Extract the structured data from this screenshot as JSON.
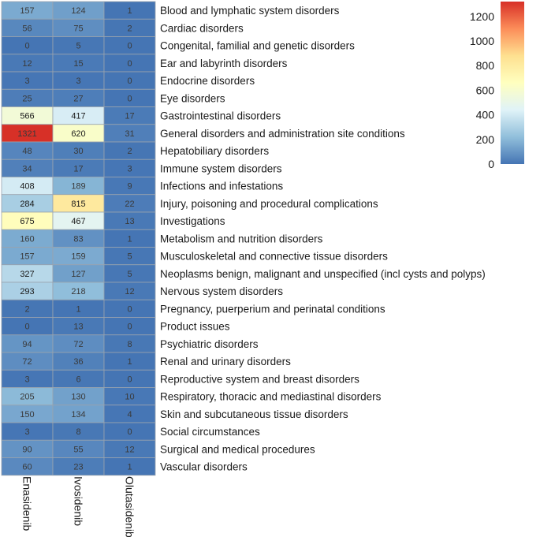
{
  "chart_data": {
    "type": "heatmap",
    "title": "",
    "columns": [
      "Enasidenib",
      "Ivosidenib",
      "Olutasidenib"
    ],
    "rows": [
      "Blood and lymphatic system disorders",
      "Cardiac disorders",
      "Congenital, familial and genetic disorders",
      "Ear and labyrinth disorders",
      "Endocrine disorders",
      "Eye disorders",
      "Gastrointestinal disorders",
      "General disorders and administration site conditions",
      "Hepatobiliary disorders",
      "Immune system disorders",
      "Infections and infestations",
      "Injury, poisoning and procedural complications",
      "Investigations",
      "Metabolism and nutrition disorders",
      "Musculoskeletal and connective tissue disorders",
      "Neoplasms benign, malignant and unspecified (incl cysts and polyps)",
      "Nervous system disorders",
      "Pregnancy, puerperium and perinatal conditions",
      "Product issues",
      "Psychiatric disorders",
      "Renal and urinary disorders",
      "Reproductive system and breast disorders",
      "Respiratory, thoracic and mediastinal disorders",
      "Skin and subcutaneous tissue disorders",
      "Social circumstances",
      "Surgical and medical procedures",
      "Vascular disorders"
    ],
    "values": [
      [
        157,
        124,
        1
      ],
      [
        56,
        75,
        2
      ],
      [
        0,
        5,
        0
      ],
      [
        12,
        15,
        0
      ],
      [
        3,
        3,
        0
      ],
      [
        25,
        27,
        0
      ],
      [
        566,
        417,
        17
      ],
      [
        1321,
        620,
        31
      ],
      [
        48,
        30,
        2
      ],
      [
        34,
        17,
        3
      ],
      [
        408,
        189,
        9
      ],
      [
        284,
        815,
        22
      ],
      [
        675,
        467,
        13
      ],
      [
        160,
        83,
        1
      ],
      [
        157,
        159,
        5
      ],
      [
        327,
        127,
        5
      ],
      [
        293,
        218,
        12
      ],
      [
        2,
        1,
        0
      ],
      [
        0,
        13,
        0
      ],
      [
        94,
        72,
        8
      ],
      [
        72,
        36,
        1
      ],
      [
        3,
        6,
        0
      ],
      [
        205,
        130,
        10
      ],
      [
        150,
        134,
        4
      ],
      [
        3,
        8,
        0
      ],
      [
        90,
        55,
        12
      ],
      [
        60,
        23,
        1
      ]
    ],
    "color_scale": {
      "min": 0,
      "max": 1321,
      "ticks": [
        0,
        200,
        400,
        600,
        800,
        1000,
        1200
      ],
      "tick_labels": [
        "0",
        "200",
        "400",
        "600",
        "800",
        "1000",
        "1200"
      ],
      "colors": [
        "#4575b4",
        "#91bfdb",
        "#e0f3f8",
        "#ffffbf",
        "#fee090",
        "#fc8d59",
        "#d73027"
      ]
    }
  }
}
